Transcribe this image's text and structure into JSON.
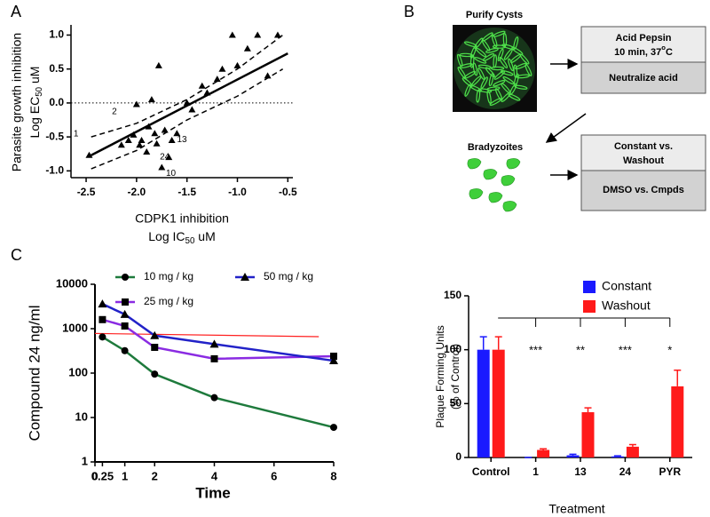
{
  "panels": [
    "A",
    "B",
    "C"
  ],
  "chart_data": [
    {
      "type": "scatter",
      "xlabel": [
        "CDPK1 inhibition",
        [
          "Log IC",
          "50",
          " uM"
        ]
      ],
      "ylabel": [
        "Parasite growth inhibition",
        [
          "Log EC",
          "50",
          " uM"
        ]
      ],
      "x": [
        -2.47,
        -2.15,
        -2.08,
        -2.03,
        -2.0,
        -1.97,
        -1.95,
        -1.9,
        -1.88,
        -1.85,
        -1.82,
        -1.8,
        -1.78,
        -1.75,
        -1.72,
        -1.68,
        -1.65,
        -1.6,
        -1.5,
        -1.45,
        -1.35,
        -1.3,
        -1.2,
        -1.15,
        -1.05,
        -1.0,
        -0.9,
        -0.8,
        -0.7,
        -0.6
      ],
      "values": [
        -0.77,
        -0.62,
        -0.55,
        -0.47,
        -0.02,
        -0.62,
        -0.55,
        -0.72,
        -0.35,
        0.05,
        -0.45,
        -0.6,
        0.55,
        -0.95,
        -0.4,
        -0.8,
        -0.55,
        -0.45,
        0.0,
        -0.1,
        0.25,
        0.15,
        0.35,
        0.5,
        1.0,
        0.55,
        0.8,
        1.0,
        0.4,
        1.0
      ],
      "color": "#000000",
      "fit": {
        "x": [
          -2.45,
          -0.5
        ],
        "y": [
          -0.77,
          0.73
        ]
      },
      "band_upper": {
        "x": [
          -2.45,
          -2.0,
          -1.5,
          -1.0,
          -0.55
        ],
        "y": [
          -0.5,
          -0.3,
          0.05,
          0.5,
          1.0
        ]
      },
      "band_lower": {
        "x": [
          -2.45,
          -2.0,
          -1.5,
          -1.0,
          -0.55
        ],
        "y": [
          -0.97,
          -0.7,
          -0.25,
          0.1,
          0.5
        ]
      },
      "hline": 0,
      "xlim": [
        -2.65,
        -0.45
      ],
      "xticks": [
        -2.5,
        {
          "value": -2,
          "label": "-2.0"
        },
        -1.5,
        {
          "value": -1,
          "label": "-1.0"
        },
        -0.5
      ],
      "ylim": [
        -1.1,
        1.15
      ],
      "yticks": [
        {
          "value": -1,
          "label": "-1.0"
        },
        -0.5,
        {
          "value": 0,
          "label": "0.0"
        },
        0.5,
        {
          "value": 1,
          "label": "1.0"
        }
      ],
      "annotations": [
        {
          "text": "1",
          "x": -2.6,
          "y": -0.46
        },
        {
          "text": "2",
          "x": -2.22,
          "y": -0.13
        },
        {
          "text": "13",
          "x": -1.55,
          "y": -0.54
        },
        {
          "text": "24",
          "x": -1.72,
          "y": -0.8
        },
        {
          "text": "10",
          "x": -1.66,
          "y": -1.04
        }
      ]
    },
    {
      "type": "line",
      "ylabel": "Compound 24 ng/ml",
      "xlabel": "Time",
      "x": [
        0.25,
        1,
        2,
        4,
        8
      ],
      "series": [
        {
          "name": "10 mg / kg",
          "color": "#1e7a3c",
          "marker": "circle",
          "values": [
            650,
            320,
            95,
            28,
            6
          ]
        },
        {
          "name": "25 mg / kg",
          "color": "#8a2be2",
          "marker": "square",
          "values": [
            1600,
            1150,
            380,
            210,
            240
          ]
        },
        {
          "name": "50 mg / kg",
          "color": "#2222c8",
          "marker": "triangle",
          "values": [
            3600,
            2100,
            700,
            450,
            190
          ]
        }
      ],
      "reference_line": {
        "x": [
          0,
          7.5
        ],
        "y": [
          780,
          660
        ],
        "color": "#ff2020"
      },
      "log_y": true,
      "xlim": [
        0,
        8
      ],
      "xticks": [
        0,
        0.25,
        1,
        2,
        4,
        6,
        8
      ],
      "ylim": [
        1,
        10000
      ],
      "yticks": [
        1,
        10,
        100,
        1000,
        10000
      ]
    },
    {
      "type": "bar",
      "ylabel": [
        "Plaque Forming Units",
        "(% of Control)"
      ],
      "xlabel": "Treatment",
      "categories": [
        "Control",
        "1",
        "13",
        "24",
        "PYR"
      ],
      "series": [
        {
          "name": "Constant",
          "color": "#1a1aff",
          "values": [
            100,
            0,
            2,
            1,
            null
          ],
          "errors": [
            12,
            0,
            1,
            0.5,
            null
          ]
        },
        {
          "name": "Washout",
          "color": "#ff1a1a",
          "values": [
            100,
            7,
            42,
            10,
            66
          ],
          "errors": [
            12,
            1,
            4,
            2,
            15
          ]
        }
      ],
      "significance": [
        null,
        "***",
        "**",
        "***",
        "*"
      ],
      "ylim": [
        0,
        150
      ],
      "yticks": [
        0,
        50,
        100,
        150
      ]
    }
  ],
  "diagram": {
    "image_title": "Purify Cysts",
    "box1": [
      "Acid Pepsin",
      [
        "10 min, 37",
        "o",
        "C"
      ],
      "Neutralize acid"
    ],
    "cells_label": "Bradyzoites",
    "box2": [
      "Constant vs.",
      "Washout",
      "DMSO vs. Cmpds"
    ]
  }
}
